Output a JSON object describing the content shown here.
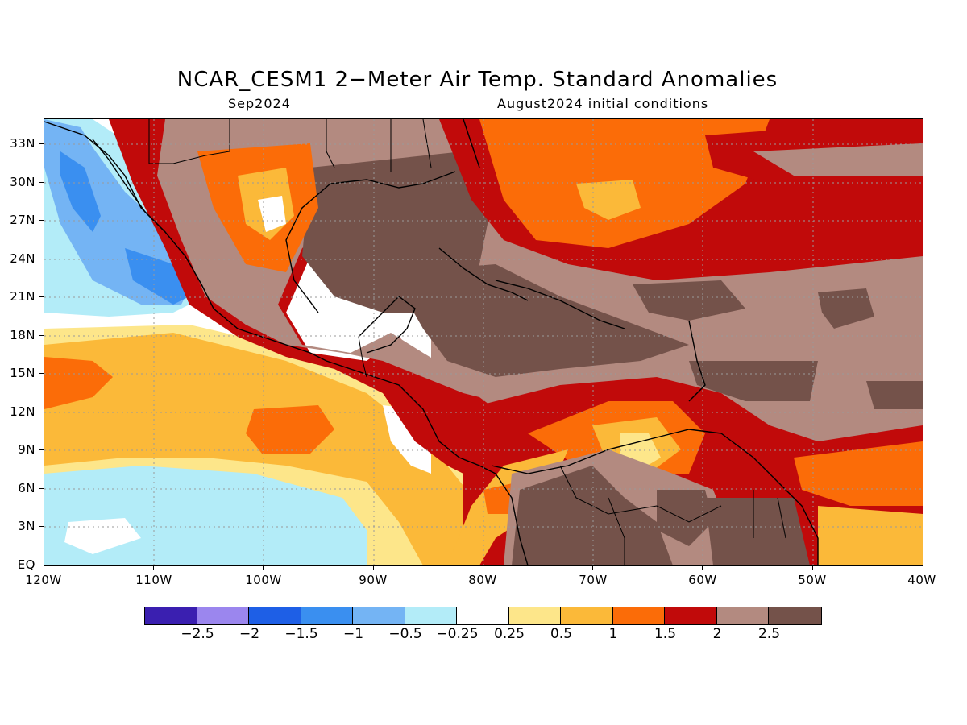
{
  "title": "NCAR_CESM1 2−Meter Air Temp. Standard Anomalies",
  "subtitle_left": "Sep2024",
  "subtitle_right": "August2024 initial conditions",
  "lat_labels": [
    "33N",
    "30N",
    "27N",
    "24N",
    "21N",
    "18N",
    "15N",
    "12N",
    "9N",
    "6N",
    "3N",
    "EQ"
  ],
  "lon_labels": [
    "120W",
    "110W",
    "100W",
    "90W",
    "80W",
    "70W",
    "60W",
    "50W",
    "40W"
  ],
  "colorbar": {
    "colors": [
      "#3a1fb0",
      "#9b86ee",
      "#1e5fe6",
      "#3a8ff0",
      "#74b4f4",
      "#b3ecf8",
      "#ffffff",
      "#fde68a",
      "#fbb939",
      "#fb6c08",
      "#c10a0a",
      "#b38a80",
      "#74524a"
    ],
    "labels": [
      "−2.5",
      "−2",
      "−1.5",
      "−1",
      "−0.5",
      "−0.25",
      "0.25",
      "0.5",
      "1",
      "1.5",
      "2",
      "2.5"
    ]
  },
  "map_data": {
    "variable": "2-Meter Air Temp. Standard Anomalies",
    "lon_range": [
      -120,
      -40
    ],
    "lat_range": [
      0,
      35
    ],
    "grid": true
  }
}
